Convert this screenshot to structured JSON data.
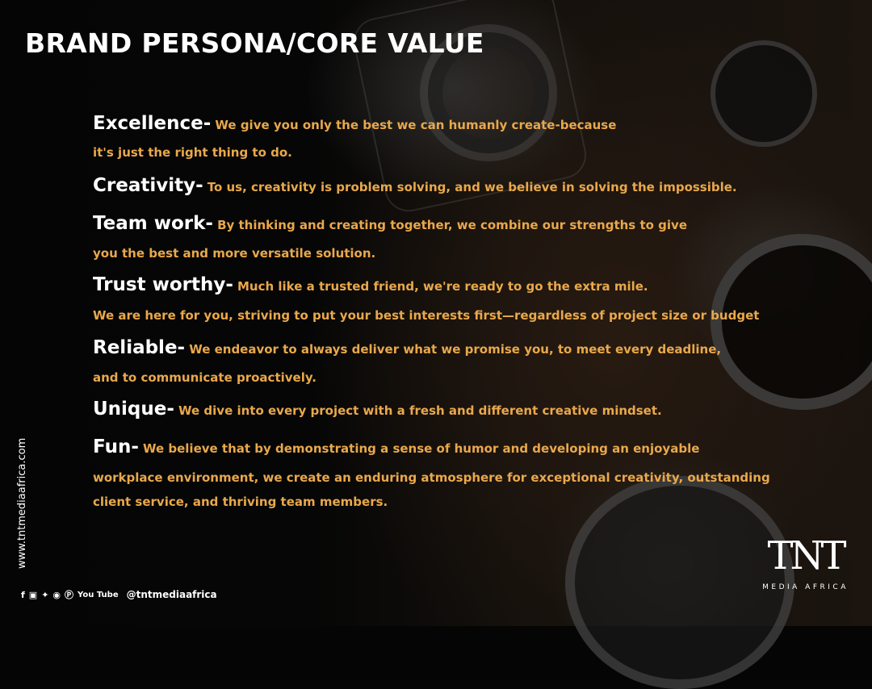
{
  "title": "BRAND PERSONA/CORE VALUE",
  "values": [
    {
      "term": "Excellence-",
      "desc": "We give you only the best we can humanly create-because",
      "cont": [
        "it's just the right thing to do."
      ]
    },
    {
      "term": "Creativity-",
      "desc": "To us, creativity is problem solving, and we believe in solving the impossible.",
      "cont": []
    },
    {
      "term": "Team work-",
      "desc": "By thinking and creating together, we combine our strengths to give",
      "cont": [
        "you the best and more versatile solution."
      ]
    },
    {
      "term": "Trust worthy-",
      "desc": "Much like a trusted friend, we're ready to go the extra mile.",
      "cont": [
        "We are here for you, striving to put your best interests first—regardless of project size or budget"
      ]
    },
    {
      "term": "Reliable-",
      "desc": "We endeavor to always deliver what we promise you, to meet every deadline,",
      "cont": [
        "and to communicate proactively."
      ]
    },
    {
      "term": "Unique-",
      "desc": "We dive into every project with a fresh and different creative mindset.",
      "cont": []
    },
    {
      "term": "Fun-",
      "desc": "We believe that by demonstrating a sense of humor and developing an enjoyable",
      "cont": [
        "workplace environment, we create an enduring atmosphere for exceptional creativity, outstanding",
        "client service, and thriving team members."
      ]
    }
  ],
  "website": "www.tntmediaafrica.com",
  "social": {
    "icons": [
      "facebook-icon",
      "instagram-icon",
      "twitter-icon",
      "linkedin-icon",
      "pinterest-icon",
      "youtube-icon"
    ],
    "youtube_label": "You Tube",
    "handle": "@tntmediaafrica"
  },
  "logo": {
    "mark": "TNT",
    "sub": "MEDIA AFRICA"
  },
  "colors": {
    "accent": "#e9a84b",
    "text": "#ffffff",
    "background": "#050505"
  }
}
